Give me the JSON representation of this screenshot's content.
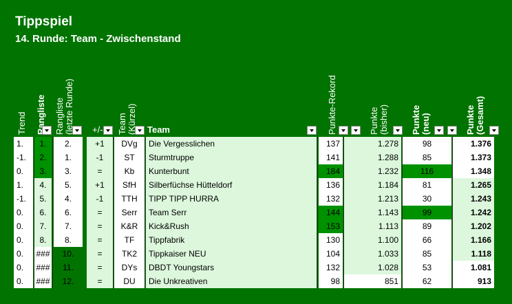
{
  "title": "Tippspiel",
  "subtitle": "14. Runde: Team - Zwischenstand",
  "headers": {
    "trend": "Trend",
    "rangliste": "Rangliste",
    "rangliste_letzte_1": "Rangliste",
    "rangliste_letzte_2": "(letzte Runde)",
    "plusminus": "+/-",
    "team_kurz_1": "Team",
    "team_kurz_2": "(Kürzel)",
    "team": "Team",
    "rekord": "Punkte-Rekord",
    "bisher_1": "Punkte",
    "bisher_2": "(bisher)",
    "neu_1": "Punkte",
    "neu_2": "(neu)",
    "gesamt_1": "Punkte",
    "gesamt_2": "(Gesamt)"
  },
  "rows": [
    {
      "trend": "1.",
      "rang": "1.",
      "letzte": "2.",
      "pm": "+1",
      "kurz": "DVg",
      "team": "Die Vergesslichen",
      "rekord": "137",
      "bisher": "1.278",
      "neu": "98",
      "gesamt": "1.376"
    },
    {
      "trend": "-1.",
      "rang": "2.",
      "letzte": "1.",
      "pm": "-1",
      "kurz": "ST",
      "team": "Sturmtruppe",
      "rekord": "141",
      "bisher": "1.288",
      "neu": "85",
      "gesamt": "1.373"
    },
    {
      "trend": "0.",
      "rang": "3.",
      "letzte": "3.",
      "pm": "=",
      "kurz": "Kb",
      "team": "Kunterbunt",
      "rekord": "184",
      "bisher": "1.232",
      "neu": "116",
      "gesamt": "1.348"
    },
    {
      "trend": "1.",
      "rang": "4.",
      "letzte": "5.",
      "pm": "+1",
      "kurz": "SfH",
      "team": "Silberfüchse Hütteldorf",
      "rekord": "136",
      "bisher": "1.184",
      "neu": "81",
      "gesamt": "1.265"
    },
    {
      "trend": "-1.",
      "rang": "5.",
      "letzte": "4.",
      "pm": "-1",
      "kurz": "TTH",
      "team": "TIPP TIPP HURRA",
      "rekord": "132",
      "bisher": "1.213",
      "neu": "30",
      "gesamt": "1.243"
    },
    {
      "trend": "0.",
      "rang": "6.",
      "letzte": "6.",
      "pm": "=",
      "kurz": "Serr",
      "team": "Team Serr",
      "rekord": "144",
      "bisher": "1.143",
      "neu": "99",
      "gesamt": "1.242"
    },
    {
      "trend": "0.",
      "rang": "7.",
      "letzte": "7.",
      "pm": "=",
      "kurz": "K&R",
      "team": "Kick&Rush",
      "rekord": "153",
      "bisher": "1.113",
      "neu": "89",
      "gesamt": "1.202"
    },
    {
      "trend": "0.",
      "rang": "8.",
      "letzte": "8.",
      "pm": "=",
      "kurz": "TF",
      "team": "Tippfabrik",
      "rekord": "130",
      "bisher": "1.100",
      "neu": "66",
      "gesamt": "1.166"
    },
    {
      "trend": "0.",
      "rang": "###",
      "letzte": "10.",
      "pm": "=",
      "kurz": "TK2",
      "team": "Tippkaiser NEU",
      "rekord": "104",
      "bisher": "1.033",
      "neu": "85",
      "gesamt": "1.118"
    },
    {
      "trend": "0.",
      "rang": "###",
      "letzte": "11.",
      "pm": "=",
      "kurz": "DYs",
      "team": "DBDT Youngstars",
      "rekord": "132",
      "bisher": "1.028",
      "neu": "53",
      "gesamt": "1.081"
    },
    {
      "trend": "0.",
      "rang": "###",
      "letzte": "12.",
      "pm": "=",
      "kurz": "DU",
      "team": "Die Unkreativen",
      "rekord": "98",
      "bisher": "851",
      "neu": "62",
      "gesamt": "913"
    }
  ]
}
